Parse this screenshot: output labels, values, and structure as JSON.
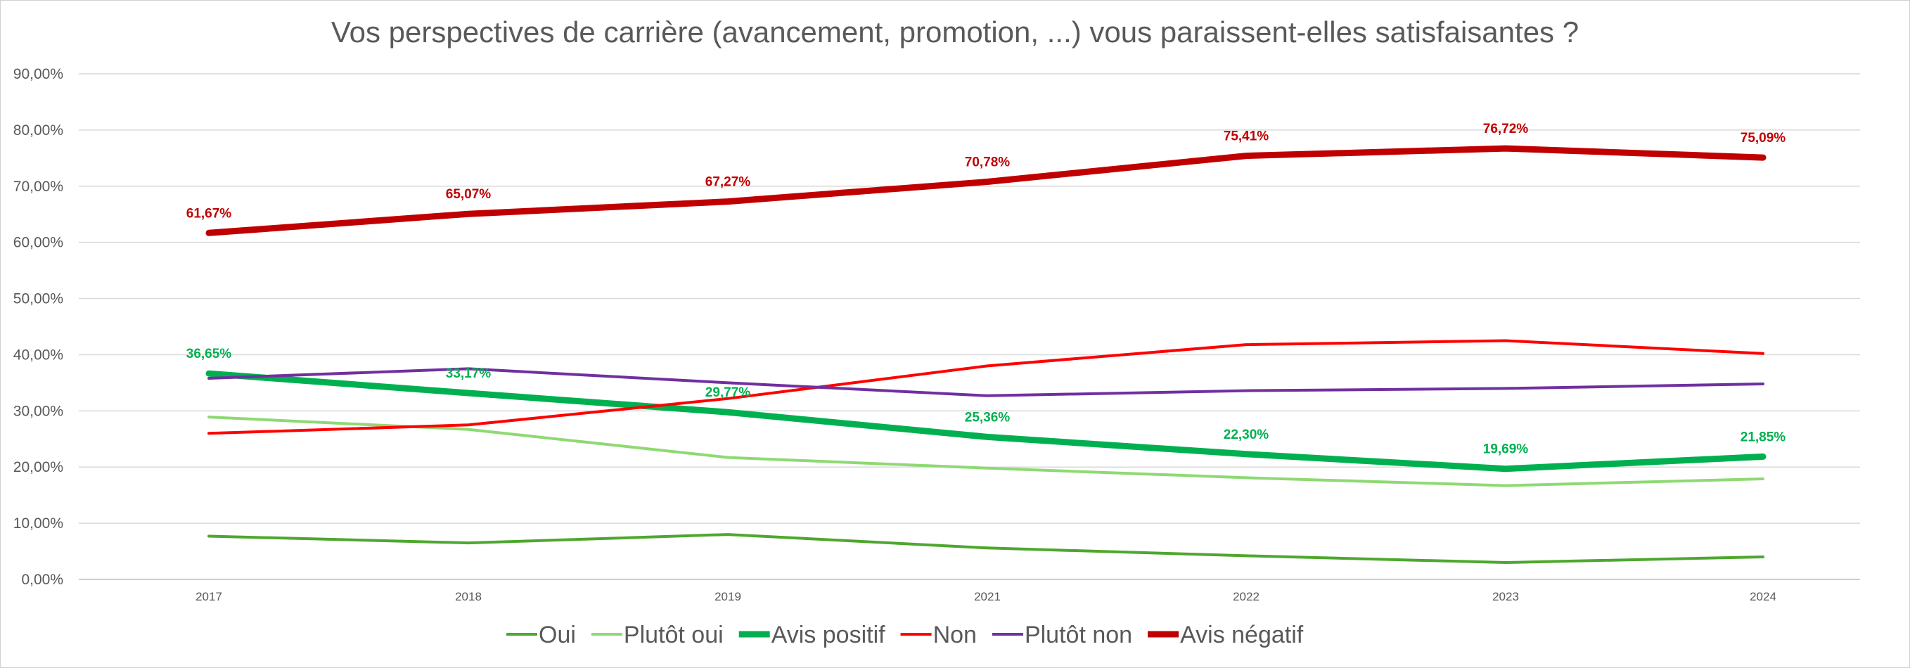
{
  "chart_data": {
    "type": "line",
    "title": "Vos perspectives de carrière (avancement, promotion, ...) vous paraissent-elles satisfaisantes ?",
    "categories": [
      "2017",
      "2018",
      "2019",
      "2021",
      "2022",
      "2023",
      "2024"
    ],
    "y_ticks": [
      "0,00%",
      "10,00%",
      "20,00%",
      "30,00%",
      "40,00%",
      "50,00%",
      "60,00%",
      "70,00%",
      "80,00%",
      "90,00%"
    ],
    "ylim": [
      0,
      90
    ],
    "grid": true,
    "legend_position": "bottom",
    "series": [
      {
        "name": "Oui",
        "color": "#4ea72e",
        "width": "thin",
        "values": [
          7.7,
          6.5,
          8.0,
          5.6,
          4.2,
          3.0,
          4.0
        ],
        "labels": []
      },
      {
        "name": "Plutôt oui",
        "color": "#8ed973",
        "width": "thin",
        "values": [
          28.9,
          26.7,
          21.7,
          19.8,
          18.1,
          16.7,
          17.9
        ],
        "labels": []
      },
      {
        "name": "Avis positif",
        "color": "#00b050",
        "width": "thick",
        "values": [
          36.65,
          33.17,
          29.77,
          25.36,
          22.3,
          19.69,
          21.85
        ],
        "labels": [
          "36,65%",
          "33,17%",
          "29,77%",
          "25,36%",
          "22,30%",
          "19,69%",
          "21,85%"
        ]
      },
      {
        "name": "Non",
        "color": "#ff0000",
        "width": "thin",
        "values": [
          26.0,
          27.5,
          32.2,
          38.0,
          41.8,
          42.5,
          40.2
        ],
        "labels": []
      },
      {
        "name": "Plutôt non",
        "color": "#7030a0",
        "width": "thin",
        "values": [
          35.8,
          37.5,
          35.0,
          32.7,
          33.6,
          34.0,
          34.8
        ],
        "labels": []
      },
      {
        "name": "Avis négatif",
        "color": "#c00000",
        "width": "thick",
        "values": [
          61.67,
          65.07,
          67.27,
          70.78,
          75.41,
          76.72,
          75.09
        ],
        "labels": [
          "61,67%",
          "65,07%",
          "67,27%",
          "70,78%",
          "75,41%",
          "76,72%",
          "75,09%"
        ]
      }
    ]
  }
}
